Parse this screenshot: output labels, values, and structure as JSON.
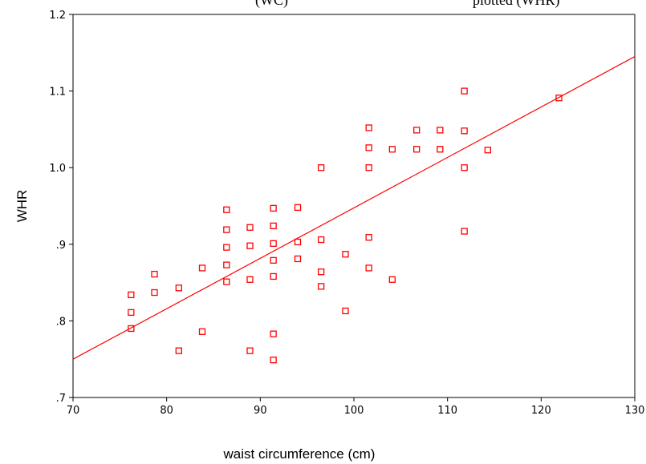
{
  "top_text": {
    "left_fragment": "(WC)",
    "right_fragment": "plotted (WHR)"
  },
  "chart_data": {
    "type": "scatter",
    "xlabel": "waist circumference (cm)",
    "ylabel": "WHR",
    "xlim": [
      70,
      130
    ],
    "ylim": [
      0.7,
      1.2
    ],
    "x_ticks": [
      70,
      80,
      90,
      100,
      110,
      120,
      130
    ],
    "x_tick_labels": [
      "70",
      "80",
      "90",
      "100",
      "110",
      "120",
      "130"
    ],
    "y_ticks": [
      0.7,
      0.8,
      0.9,
      1.0,
      1.1,
      1.2
    ],
    "y_tick_labels": [
      ".7",
      ".8",
      ".9",
      "1.0",
      "1.1",
      "1.2"
    ],
    "marker": "open-square",
    "marker_color": "#ff0000",
    "line_color": "#ff0000",
    "fit_line": {
      "x": [
        70,
        130
      ],
      "y": [
        0.75,
        1.145
      ]
    },
    "points": [
      {
        "x": 76.2,
        "y": 0.834
      },
      {
        "x": 76.2,
        "y": 0.811
      },
      {
        "x": 76.2,
        "y": 0.79
      },
      {
        "x": 78.7,
        "y": 0.861
      },
      {
        "x": 78.7,
        "y": 0.837
      },
      {
        "x": 81.3,
        "y": 0.843
      },
      {
        "x": 81.3,
        "y": 0.761
      },
      {
        "x": 83.8,
        "y": 0.869
      },
      {
        "x": 83.8,
        "y": 0.786
      },
      {
        "x": 86.4,
        "y": 0.945
      },
      {
        "x": 86.4,
        "y": 0.919
      },
      {
        "x": 86.4,
        "y": 0.896
      },
      {
        "x": 86.4,
        "y": 0.873
      },
      {
        "x": 86.4,
        "y": 0.851
      },
      {
        "x": 88.9,
        "y": 0.922
      },
      {
        "x": 88.9,
        "y": 0.898
      },
      {
        "x": 88.9,
        "y": 0.854
      },
      {
        "x": 88.9,
        "y": 0.761
      },
      {
        "x": 91.4,
        "y": 0.947
      },
      {
        "x": 91.4,
        "y": 0.924
      },
      {
        "x": 91.4,
        "y": 0.901
      },
      {
        "x": 91.4,
        "y": 0.879
      },
      {
        "x": 91.4,
        "y": 0.858
      },
      {
        "x": 91.4,
        "y": 0.783
      },
      {
        "x": 91.4,
        "y": 0.749
      },
      {
        "x": 94.0,
        "y": 0.948
      },
      {
        "x": 94.0,
        "y": 0.903
      },
      {
        "x": 94.0,
        "y": 0.881
      },
      {
        "x": 96.5,
        "y": 1.0
      },
      {
        "x": 96.5,
        "y": 0.906
      },
      {
        "x": 96.5,
        "y": 0.864
      },
      {
        "x": 96.5,
        "y": 0.845
      },
      {
        "x": 99.1,
        "y": 0.887
      },
      {
        "x": 99.1,
        "y": 0.813
      },
      {
        "x": 101.6,
        "y": 1.052
      },
      {
        "x": 101.6,
        "y": 1.026
      },
      {
        "x": 101.6,
        "y": 1.0
      },
      {
        "x": 101.6,
        "y": 0.909
      },
      {
        "x": 101.6,
        "y": 0.869
      },
      {
        "x": 104.1,
        "y": 1.024
      },
      {
        "x": 104.1,
        "y": 0.854
      },
      {
        "x": 106.7,
        "y": 1.049
      },
      {
        "x": 106.7,
        "y": 1.024
      },
      {
        "x": 109.2,
        "y": 1.049
      },
      {
        "x": 109.2,
        "y": 1.024
      },
      {
        "x": 111.8,
        "y": 1.1
      },
      {
        "x": 111.8,
        "y": 1.048
      },
      {
        "x": 111.8,
        "y": 1.0
      },
      {
        "x": 111.8,
        "y": 0.917
      },
      {
        "x": 114.3,
        "y": 1.023
      },
      {
        "x": 121.9,
        "y": 1.091
      }
    ]
  }
}
